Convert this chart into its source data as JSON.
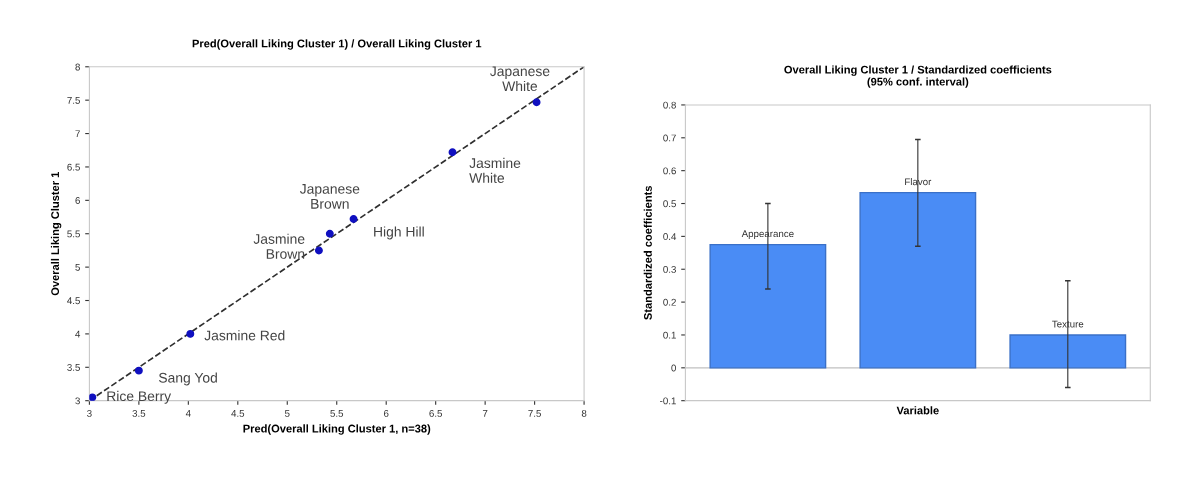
{
  "chart_data": [
    {
      "type": "scatter",
      "title": "Pred(Overall Liking Cluster 1) / Overall Liking Cluster 1",
      "xlabel": "Pred(Overall Liking Cluster 1, n=38)",
      "ylabel": "Overall Liking Cluster 1",
      "series": [
        {
          "type": "scatter",
          "color": "#1010c0",
          "marker": "circle",
          "x": [
            3.03,
            3.5,
            4.02,
            5.32,
            5.43,
            5.67,
            6.67,
            7.52
          ],
          "values": [
            3.05,
            3.45,
            4.0,
            5.25,
            5.5,
            5.72,
            6.72,
            7.47
          ]
        },
        {
          "type": "line",
          "color": "#303030",
          "line_style": "dashed",
          "x": [
            3,
            8
          ],
          "values": [
            3,
            8
          ]
        }
      ],
      "annotations": [
        {
          "text": "Rice Berry",
          "x": 3.03,
          "y": 3.05
        },
        {
          "text": "Sang Yod",
          "x": 3.5,
          "y": 3.45
        },
        {
          "text": "Jasmine Red",
          "x": 4.02,
          "y": 4.0
        },
        {
          "text": "Jasmine\nBrown",
          "x": 5.32,
          "y": 5.25
        },
        {
          "text": "Japanese\nBrown",
          "x": 5.43,
          "y": 5.5
        },
        {
          "text": "High Hill",
          "x": 5.67,
          "y": 5.72
        },
        {
          "text": "Jasmine\nWhite",
          "x": 6.67,
          "y": 6.72
        },
        {
          "text": "Japanese\nWhite",
          "x": 7.52,
          "y": 7.47
        }
      ],
      "xlim": [
        3,
        8
      ],
      "ylim": [
        3,
        8
      ],
      "xticks": [
        3,
        3.5,
        4,
        4.5,
        5,
        5.5,
        6,
        6.5,
        7,
        7.5,
        8
      ],
      "yticks": [
        3,
        3.5,
        4,
        4.5,
        5,
        5.5,
        6,
        6.5,
        7,
        7.5,
        8
      ],
      "grid": false,
      "legend": false
    },
    {
      "type": "bar",
      "title": "Overall Liking Cluster 1 / Standardized coefficients\n(95% conf. interval)",
      "xlabel": "Variable",
      "ylabel": "Standardized coefficients",
      "categories": [
        "Appearance",
        "Flavor",
        "Texture"
      ],
      "values": [
        0.375,
        0.533,
        0.1
      ],
      "color": "#4a8cf5",
      "errors": [
        [
          0.24,
          0.5
        ],
        [
          0.37,
          0.695
        ],
        [
          -0.06,
          0.265
        ]
      ],
      "ylim": [
        -0.1,
        0.8
      ],
      "yticks": [
        -0.1,
        0,
        0.1,
        0.2,
        0.3,
        0.4,
        0.5,
        0.6,
        0.7,
        0.8
      ],
      "ref_lines": [
        {
          "axis": "y",
          "value": 0,
          "color": "#c0c0c0"
        }
      ],
      "grid": false,
      "legend": false
    }
  ]
}
